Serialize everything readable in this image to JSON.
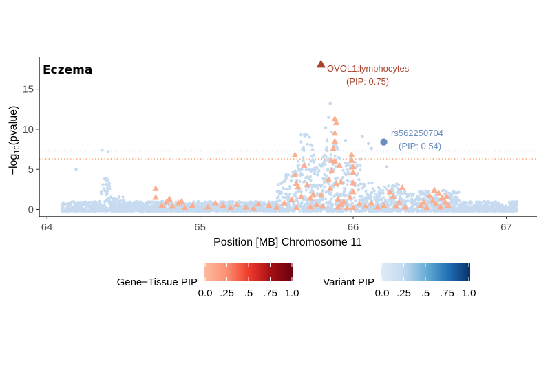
{
  "chart_data": {
    "type": "scatter",
    "title": "Eczema",
    "xlabel": "Position [MB] Chromosome 11",
    "ylabel_prefix": "−log",
    "ylabel_sub": "10",
    "ylabel_suffix": "(pvalue)",
    "xlim": [
      63.95,
      67.2
    ],
    "ylim": [
      -0.9,
      19
    ],
    "xticks": [
      "64",
      "65",
      "66",
      "67"
    ],
    "xtick_values": [
      64,
      65,
      66,
      67
    ],
    "yticks": [
      "0",
      "5",
      "10",
      "15"
    ],
    "ytick_values": [
      0,
      5,
      10,
      15
    ],
    "thresholds": [
      {
        "y": 7.3,
        "color": "#9ecae1"
      },
      {
        "y": 6.3,
        "color": "#fc9e6a"
      }
    ],
    "highlight_gene": {
      "x": 65.79,
      "y": 18.1,
      "label": "OVOL1:lymphocytes",
      "pip_label": "(PIP: 0.75)",
      "color": "#a8432d"
    },
    "highlight_variant": {
      "x": 66.2,
      "y": 8.4,
      "label": "rs562250704",
      "pip_label": "(PIP: 0.54)",
      "color": "#6c8ebf"
    },
    "variant_point_color": "#c6dbef",
    "gene_point_color": "#fcae91",
    "gene_points": [
      [
        64.71,
        2.6
      ],
      [
        64.71,
        1.5
      ],
      [
        64.75,
        0.5
      ],
      [
        64.78,
        0.9
      ],
      [
        64.8,
        1.3
      ],
      [
        64.82,
        0.4
      ],
      [
        64.86,
        0.8
      ],
      [
        64.88,
        1.0
      ],
      [
        64.9,
        0.2
      ],
      [
        64.95,
        0.5
      ],
      [
        65.05,
        0.3
      ],
      [
        65.1,
        0.8
      ],
      [
        65.15,
        0.5
      ],
      [
        65.2,
        0.2
      ],
      [
        65.24,
        0.6
      ],
      [
        65.3,
        0.3
      ],
      [
        65.35,
        0.1
      ],
      [
        65.38,
        0.7
      ],
      [
        65.45,
        0.5
      ],
      [
        65.5,
        0.3
      ],
      [
        65.55,
        0.8
      ],
      [
        65.6,
        1.2
      ],
      [
        65.63,
        0.2
      ],
      [
        65.62,
        6.8
      ],
      [
        65.62,
        4.3
      ],
      [
        65.63,
        3.2
      ],
      [
        65.64,
        2.8
      ],
      [
        65.66,
        1.6
      ],
      [
        65.68,
        5.5
      ],
      [
        65.7,
        3.1
      ],
      [
        65.72,
        1.4
      ],
      [
        65.72,
        0.3
      ],
      [
        65.74,
        1.9
      ],
      [
        65.76,
        0.6
      ],
      [
        65.79,
        1.8
      ],
      [
        65.8,
        0.4
      ],
      [
        65.84,
        3.7
      ],
      [
        65.85,
        2.6
      ],
      [
        65.86,
        6.1
      ],
      [
        65.86,
        4.8
      ],
      [
        65.87,
        7.6
      ],
      [
        65.88,
        8.5
      ],
      [
        65.88,
        6.0
      ],
      [
        65.88,
        9.5
      ],
      [
        65.88,
        11.3
      ],
      [
        65.89,
        10.8
      ],
      [
        65.89,
        3.2
      ],
      [
        65.9,
        1.3
      ],
      [
        65.9,
        0.3
      ],
      [
        65.91,
        5.5
      ],
      [
        65.92,
        3.4
      ],
      [
        65.92,
        0.6
      ],
      [
        65.94,
        1.0
      ],
      [
        65.96,
        0.2
      ],
      [
        65.98,
        1.5
      ],
      [
        65.99,
        6.8
      ],
      [
        65.99,
        6.1
      ],
      [
        66.0,
        5.3
      ],
      [
        66.0,
        4.6
      ],
      [
        66.0,
        3.3
      ],
      [
        66.0,
        2.2
      ],
      [
        66.0,
        0.2
      ],
      [
        66.04,
        0.7
      ],
      [
        66.08,
        0.4
      ],
      [
        66.12,
        0.8
      ],
      [
        66.16,
        0.3
      ],
      [
        66.2,
        0.5
      ],
      [
        66.24,
        2.2
      ],
      [
        66.26,
        1.6
      ],
      [
        66.28,
        0.4
      ],
      [
        66.3,
        0.9
      ],
      [
        66.32,
        2.7
      ],
      [
        66.34,
        0.3
      ],
      [
        66.44,
        0.5
      ],
      [
        66.46,
        0.9
      ],
      [
        66.5,
        1.7
      ],
      [
        66.52,
        1.1
      ],
      [
        66.54,
        0.7
      ],
      [
        66.56,
        2.0
      ],
      [
        66.58,
        1.4
      ],
      [
        66.6,
        0.9
      ],
      [
        66.62,
        0.5
      ],
      [
        66.53,
        2.4
      ],
      [
        66.48,
        0.2
      ],
      [
        66.57,
        0.3
      ],
      [
        66.61,
        1.6
      ]
    ],
    "legends": [
      {
        "title": "Gene−Tissue PIP",
        "gradient": [
          "#fcbba1",
          "#fc9272",
          "#ef3b2c",
          "#a50f15",
          "#67000d"
        ],
        "ticks": [
          "0.0",
          ".25",
          ".5",
          ".75",
          "1.0"
        ]
      },
      {
        "title": "Variant PIP",
        "gradient": [
          "#deebf7",
          "#c6dbef",
          "#6baed6",
          "#2171b5",
          "#08306b"
        ],
        "ticks": [
          "0.0",
          ".25",
          ".5",
          ".75",
          "1.0"
        ]
      }
    ]
  }
}
